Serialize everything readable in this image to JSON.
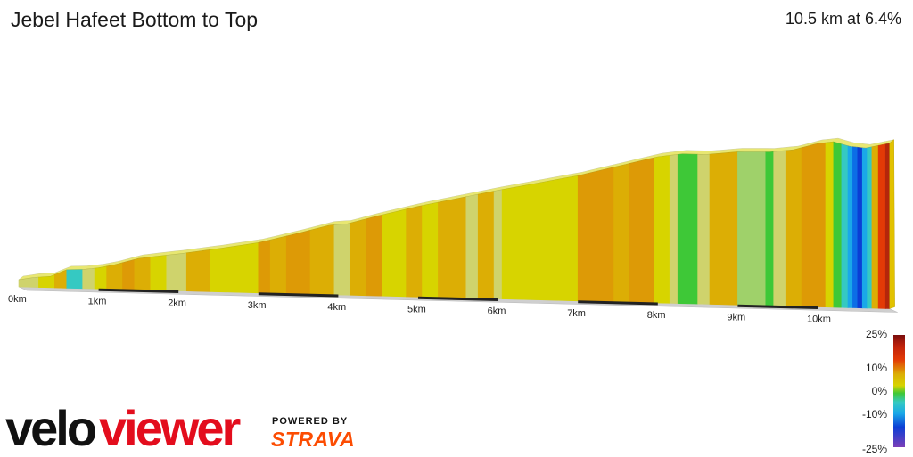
{
  "header": {
    "title": "Jebel Hafeet Bottom to Top",
    "summary": "10.5 km at 6.4%"
  },
  "colors": {
    "yellow": "#d7d400",
    "pale": "#cfd36c",
    "orange": "#dcae05",
    "dark_orange": "#dd9a06",
    "green": "#3ec837",
    "light_green": "#9fd16a",
    "teal": "#35c9c2",
    "light_blue": "#1aa8e8",
    "blue": "#0c6ee6",
    "dark_blue": "#0b3ed5",
    "red": "#e33a06",
    "dark_red": "#b4260b"
  },
  "chart_data": {
    "type": "area",
    "title": "Jebel Hafeet Bottom to Top",
    "subtitle": "10.5 km at 6.4%",
    "x_unit": "km",
    "x_ticks": [
      "0km",
      "1km",
      "2km",
      "3km",
      "4km",
      "5km",
      "6km",
      "7km",
      "8km",
      "9km",
      "10km"
    ],
    "xlim": [
      0,
      10.9
    ],
    "profile": [
      {
        "km": 0.0,
        "elev": 0
      },
      {
        "km": 0.2,
        "elev": 4
      },
      {
        "km": 0.4,
        "elev": 6
      },
      {
        "km": 0.6,
        "elev": 16
      },
      {
        "km": 0.8,
        "elev": 17
      },
      {
        "km": 1.0,
        "elev": 20
      },
      {
        "km": 1.2,
        "elev": 25
      },
      {
        "km": 1.5,
        "elev": 35
      },
      {
        "km": 1.8,
        "elev": 40
      },
      {
        "km": 2.0,
        "elev": 43
      },
      {
        "km": 2.5,
        "elev": 52
      },
      {
        "km": 3.0,
        "elev": 62
      },
      {
        "km": 3.5,
        "elev": 77
      },
      {
        "km": 3.9,
        "elev": 90
      },
      {
        "km": 4.1,
        "elev": 92
      },
      {
        "km": 4.5,
        "elev": 105
      },
      {
        "km": 5.0,
        "elev": 120
      },
      {
        "km": 5.5,
        "elev": 133
      },
      {
        "km": 6.0,
        "elev": 146
      },
      {
        "km": 6.5,
        "elev": 158
      },
      {
        "km": 7.0,
        "elev": 170
      },
      {
        "km": 7.5,
        "elev": 185
      },
      {
        "km": 8.0,
        "elev": 200
      },
      {
        "km": 8.3,
        "elev": 205
      },
      {
        "km": 8.6,
        "elev": 205
      },
      {
        "km": 9.0,
        "elev": 210
      },
      {
        "km": 9.4,
        "elev": 211
      },
      {
        "km": 9.7,
        "elev": 215
      },
      {
        "km": 10.0,
        "elev": 225
      },
      {
        "km": 10.2,
        "elev": 228
      },
      {
        "km": 10.4,
        "elev": 222
      },
      {
        "km": 10.6,
        "elev": 220
      },
      {
        "km": 10.9,
        "elev": 228
      }
    ],
    "gradient_bands": [
      {
        "km": 0.0,
        "color": "pale"
      },
      {
        "km": 0.25,
        "color": "yellow"
      },
      {
        "km": 0.45,
        "color": "orange"
      },
      {
        "km": 0.6,
        "color": "teal"
      },
      {
        "km": 0.8,
        "color": "pale"
      },
      {
        "km": 0.95,
        "color": "yellow"
      },
      {
        "km": 1.1,
        "color": "orange"
      },
      {
        "km": 1.3,
        "color": "dark_orange"
      },
      {
        "km": 1.45,
        "color": "orange"
      },
      {
        "km": 1.65,
        "color": "yellow"
      },
      {
        "km": 1.85,
        "color": "pale"
      },
      {
        "km": 2.1,
        "color": "orange"
      },
      {
        "km": 2.4,
        "color": "yellow"
      },
      {
        "km": 3.0,
        "color": "dark_orange"
      },
      {
        "km": 3.15,
        "color": "orange"
      },
      {
        "km": 3.35,
        "color": "dark_orange"
      },
      {
        "km": 3.65,
        "color": "orange"
      },
      {
        "km": 3.95,
        "color": "pale"
      },
      {
        "km": 4.15,
        "color": "orange"
      },
      {
        "km": 4.35,
        "color": "dark_orange"
      },
      {
        "km": 4.55,
        "color": "yellow"
      },
      {
        "km": 4.85,
        "color": "orange"
      },
      {
        "km": 5.05,
        "color": "yellow"
      },
      {
        "km": 5.25,
        "color": "orange"
      },
      {
        "km": 5.6,
        "color": "pale"
      },
      {
        "km": 5.75,
        "color": "orange"
      },
      {
        "km": 5.95,
        "color": "pale"
      },
      {
        "km": 6.05,
        "color": "yellow"
      },
      {
        "km": 7.0,
        "color": "dark_orange"
      },
      {
        "km": 7.45,
        "color": "orange"
      },
      {
        "km": 7.65,
        "color": "dark_orange"
      },
      {
        "km": 7.95,
        "color": "yellow"
      },
      {
        "km": 8.15,
        "color": "pale"
      },
      {
        "km": 8.25,
        "color": "green"
      },
      {
        "km": 8.5,
        "color": "pale"
      },
      {
        "km": 8.65,
        "color": "orange"
      },
      {
        "km": 9.0,
        "color": "light_green"
      },
      {
        "km": 9.35,
        "color": "green"
      },
      {
        "km": 9.45,
        "color": "pale"
      },
      {
        "km": 9.6,
        "color": "orange"
      },
      {
        "km": 9.8,
        "color": "dark_orange"
      },
      {
        "km": 10.1,
        "color": "yellow"
      },
      {
        "km": 10.2,
        "color": "green"
      },
      {
        "km": 10.3,
        "color": "teal"
      },
      {
        "km": 10.38,
        "color": "light_blue"
      },
      {
        "km": 10.44,
        "color": "blue"
      },
      {
        "km": 10.5,
        "color": "dark_blue"
      },
      {
        "km": 10.56,
        "color": "light_blue"
      },
      {
        "km": 10.62,
        "color": "teal"
      },
      {
        "km": 10.68,
        "color": "orange"
      },
      {
        "km": 10.76,
        "color": "red"
      },
      {
        "km": 10.85,
        "color": "dark_red"
      }
    ],
    "legend": {
      "labels": [
        "25%",
        "10%",
        "0%",
        "-10%",
        "-25%"
      ]
    }
  },
  "branding": {
    "powered_by": "POWERED BY",
    "strava": "STRAVA",
    "logo_text": "veloviewer"
  }
}
